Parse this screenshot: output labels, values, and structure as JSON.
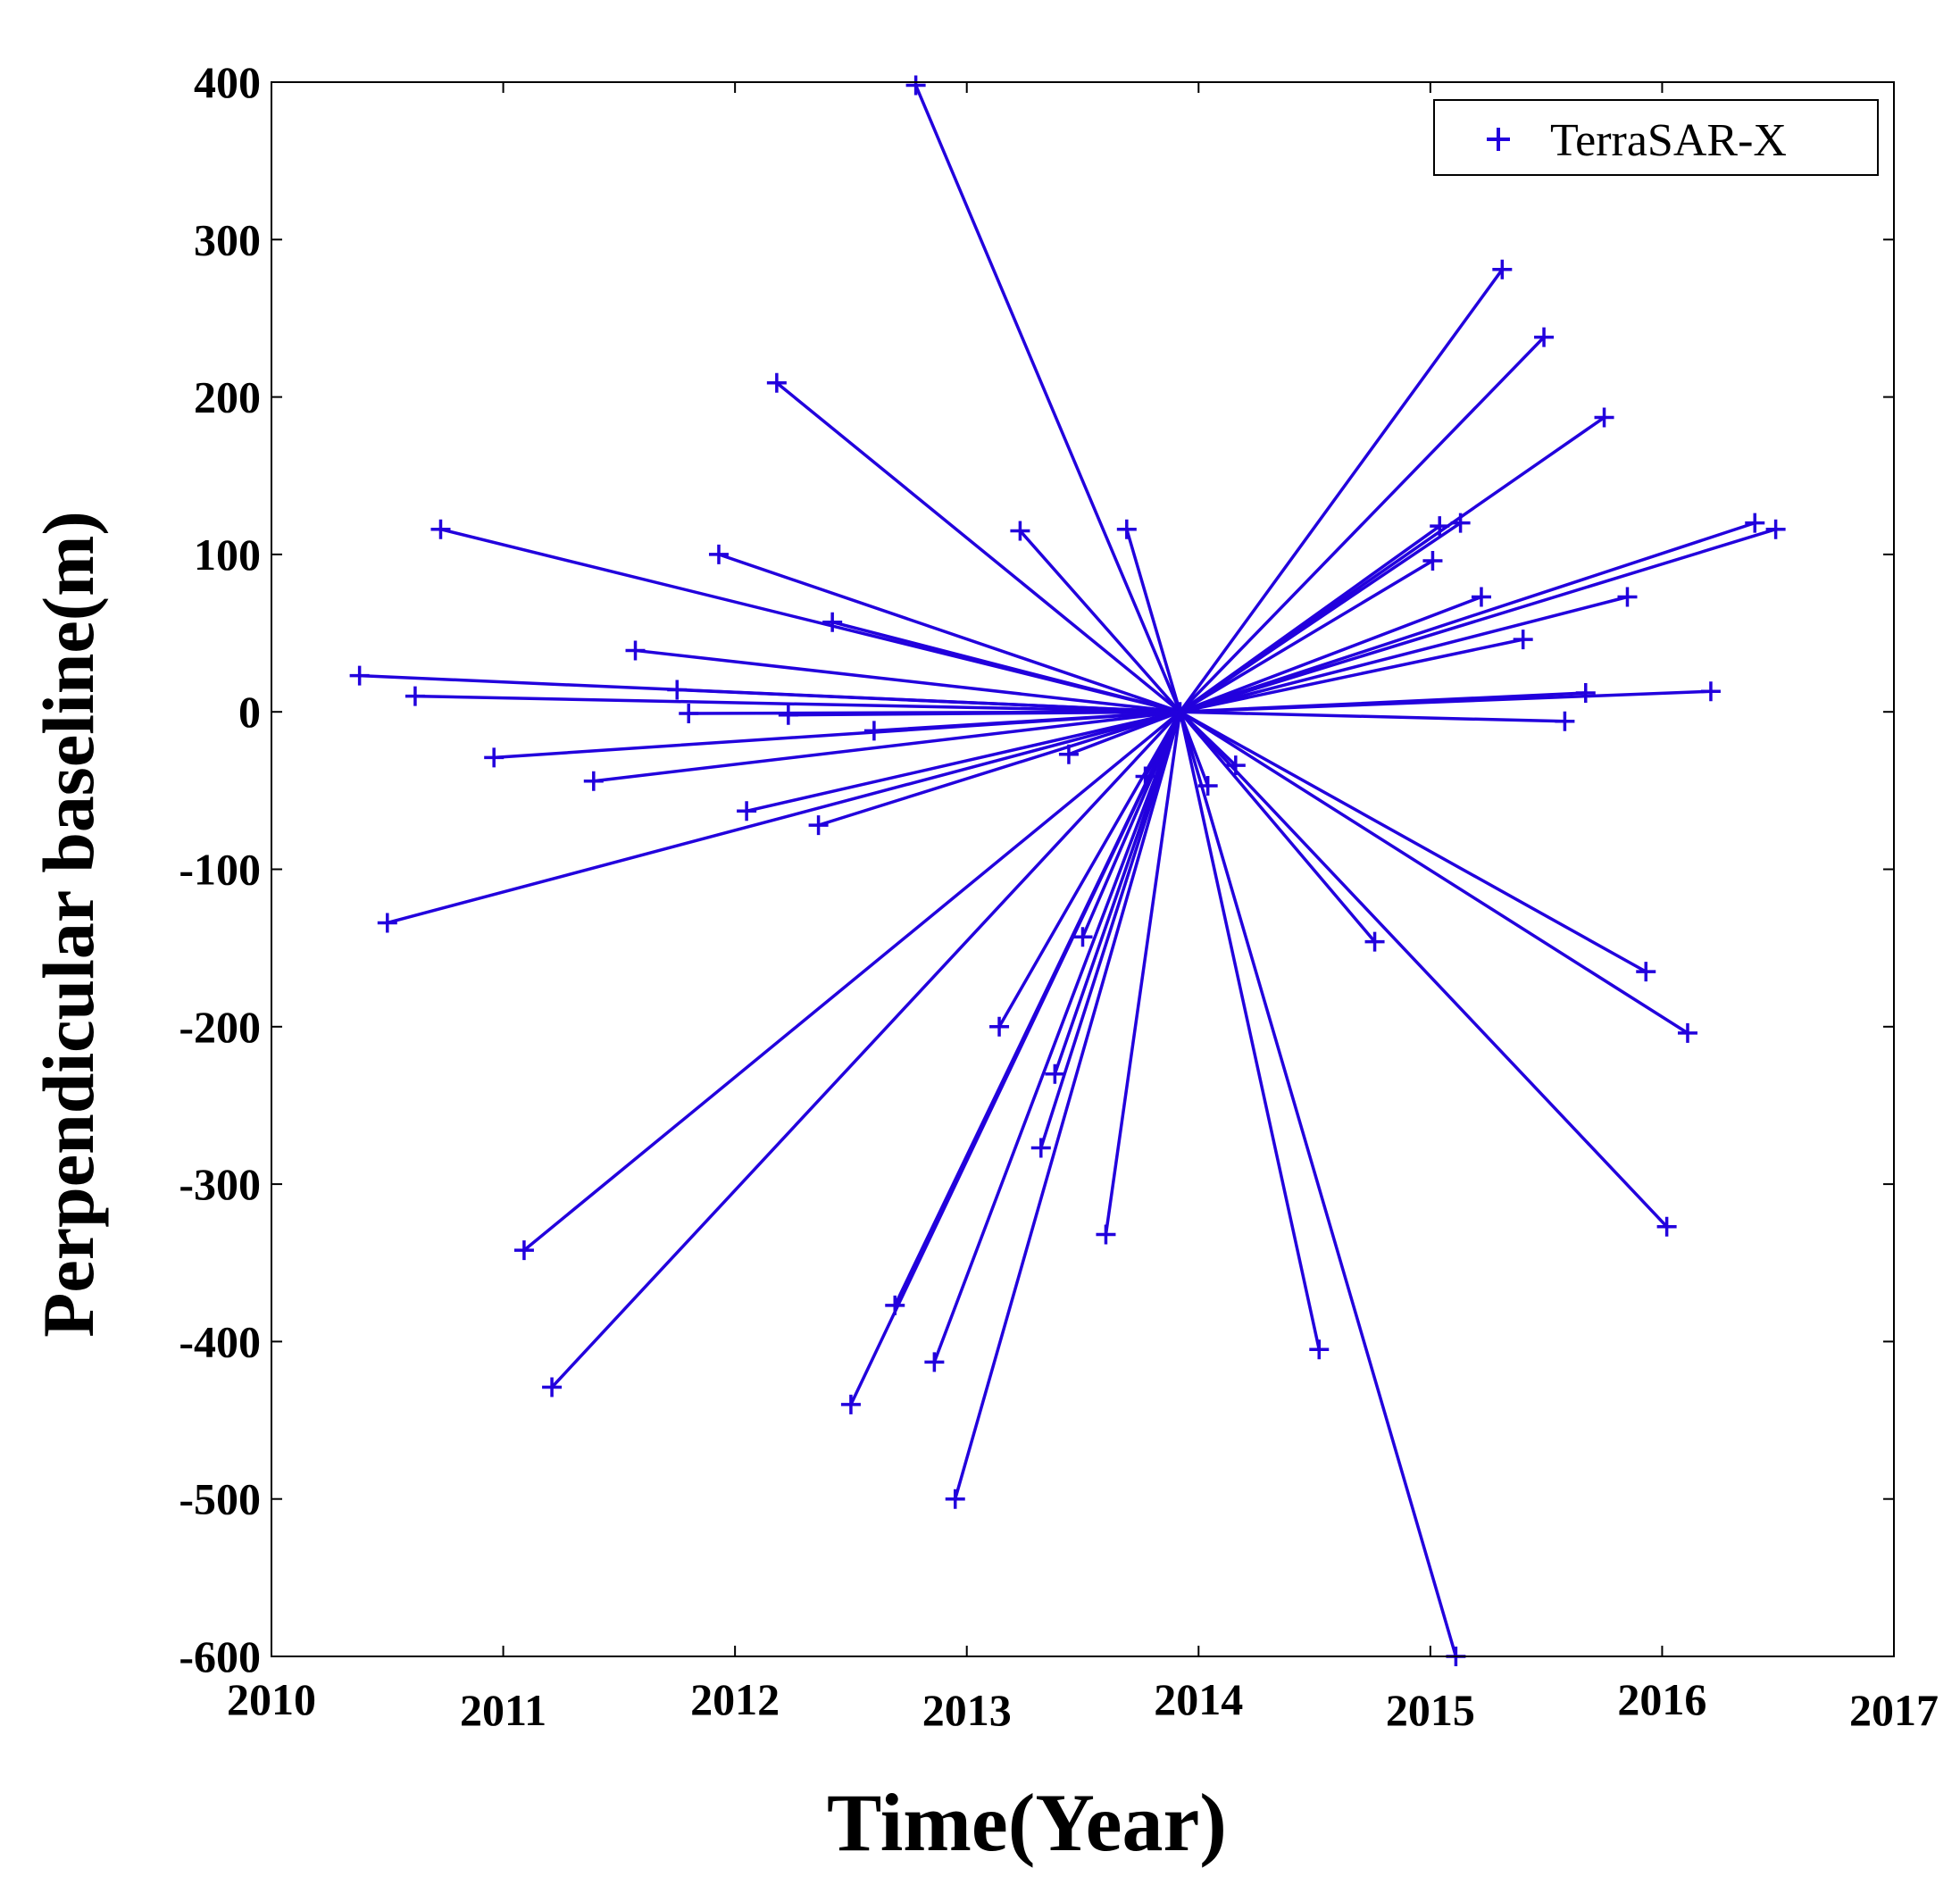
{
  "chart_data": {
    "type": "scatter",
    "xlabel": "Time(Year)",
    "ylabel": "Perpendicular baseline(m)",
    "xlim": [
      2010,
      2017
    ],
    "ylim": [
      -600,
      400
    ],
    "xticks": [
      "2010",
      "2011",
      "2012",
      "2013",
      "2014",
      "2015",
      "2016",
      "2017"
    ],
    "yticks": [
      "400",
      "300",
      "200",
      "100",
      "0",
      "-100",
      "-200",
      "-300",
      "-400",
      "-500",
      "-600"
    ],
    "legend": {
      "label": "TerraSAR-X",
      "location": "top-right"
    },
    "series_color": "#2200dd",
    "master": {
      "x": 2013.92,
      "y": 0
    },
    "points": [
      {
        "x": 2012.78,
        "y": 398
      },
      {
        "x": 2015.31,
        "y": 281
      },
      {
        "x": 2015.49,
        "y": 238
      },
      {
        "x": 2012.18,
        "y": 209
      },
      {
        "x": 2015.75,
        "y": 187
      },
      {
        "x": 2016.4,
        "y": 120
      },
      {
        "x": 2016.49,
        "y": 116
      },
      {
        "x": 2015.13,
        "y": 120
      },
      {
        "x": 2015.04,
        "y": 118
      },
      {
        "x": 2010.73,
        "y": 116
      },
      {
        "x": 2013.69,
        "y": 116
      },
      {
        "x": 2013.23,
        "y": 115
      },
      {
        "x": 2011.93,
        "y": 100
      },
      {
        "x": 2015.01,
        "y": 96
      },
      {
        "x": 2015.22,
        "y": 73
      },
      {
        "x": 2015.85,
        "y": 73
      },
      {
        "x": 2012.42,
        "y": 57
      },
      {
        "x": 2015.4,
        "y": 46
      },
      {
        "x": 2011.57,
        "y": 39
      },
      {
        "x": 2010.38,
        "y": 23
      },
      {
        "x": 2011.75,
        "y": 14
      },
      {
        "x": 2016.21,
        "y": 13
      },
      {
        "x": 2015.67,
        "y": 12
      },
      {
        "x": 2010.62,
        "y": 10
      },
      {
        "x": 2011.8,
        "y": -1
      },
      {
        "x": 2012.23,
        "y": -2
      },
      {
        "x": 2015.58,
        "y": -6
      },
      {
        "x": 2012.6,
        "y": -12
      },
      {
        "x": 2013.44,
        "y": -27
      },
      {
        "x": 2010.96,
        "y": -29
      },
      {
        "x": 2014.16,
        "y": -34
      },
      {
        "x": 2013.77,
        "y": -41
      },
      {
        "x": 2011.39,
        "y": -44
      },
      {
        "x": 2014.04,
        "y": -47
      },
      {
        "x": 2012.05,
        "y": -63
      },
      {
        "x": 2012.36,
        "y": -72
      },
      {
        "x": 2010.5,
        "y": -134
      },
      {
        "x": 2013.5,
        "y": -143
      },
      {
        "x": 2014.76,
        "y": -146
      },
      {
        "x": 2015.93,
        "y": -165
      },
      {
        "x": 2013.14,
        "y": -200
      },
      {
        "x": 2016.11,
        "y": -204
      },
      {
        "x": 2013.38,
        "y": -230
      },
      {
        "x": 2013.32,
        "y": -277
      },
      {
        "x": 2016.02,
        "y": -327
      },
      {
        "x": 2013.6,
        "y": -332
      },
      {
        "x": 2011.09,
        "y": -342
      },
      {
        "x": 2012.69,
        "y": -377
      },
      {
        "x": 2014.52,
        "y": -405
      },
      {
        "x": 2012.86,
        "y": -413
      },
      {
        "x": 2011.21,
        "y": -429
      },
      {
        "x": 2012.5,
        "y": -440
      },
      {
        "x": 2012.95,
        "y": -500
      },
      {
        "x": 2015.11,
        "y": -600
      }
    ]
  }
}
